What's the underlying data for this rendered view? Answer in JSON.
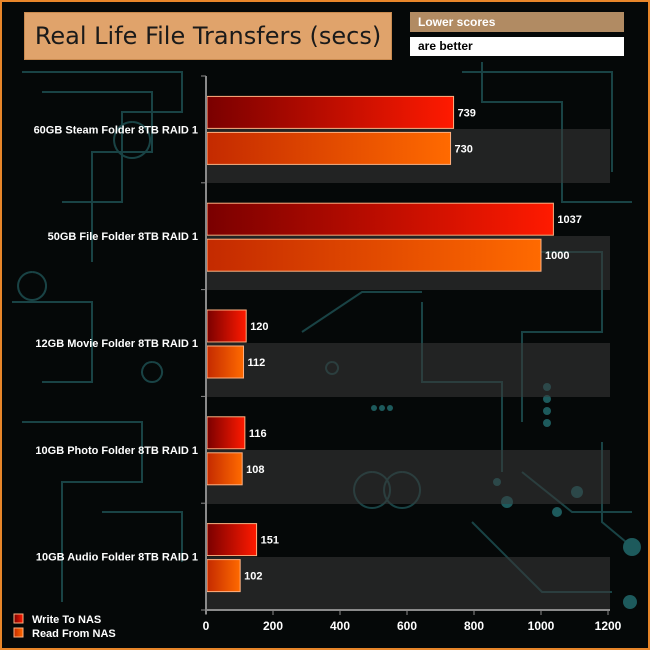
{
  "title": "Real Life File Transfers (secs)",
  "note_line1": "Lower scores",
  "note_line2": "are better",
  "colors": {
    "write_start": "#7a0000",
    "write_end": "#ff1a00",
    "read_start": "#c42a00",
    "read_end": "#ff6a00",
    "frame": "#e8862a",
    "title_bg": "#e0a36b"
  },
  "chart_data": {
    "type": "bar",
    "orientation": "horizontal",
    "categories": [
      "60GB Steam Folder 8TB RAID 1",
      "50GB File Folder 8TB RAID 1",
      "12GB Movie Folder 8TB RAID 1",
      "10GB Photo Folder 8TB RAID 1",
      "10GB Audio Folder 8TB RAID 1"
    ],
    "series": [
      {
        "name": "Write To NAS",
        "values": [
          739,
          1037,
          120,
          116,
          151
        ]
      },
      {
        "name": "Read From NAS",
        "values": [
          730,
          1000,
          112,
          108,
          102
        ]
      }
    ],
    "xlim": [
      0,
      1200
    ],
    "xticks": [
      0,
      200,
      400,
      600,
      800,
      1000,
      1200
    ],
    "legend_position": "bottom-left",
    "title": "Real Life File Transfers (secs)"
  }
}
